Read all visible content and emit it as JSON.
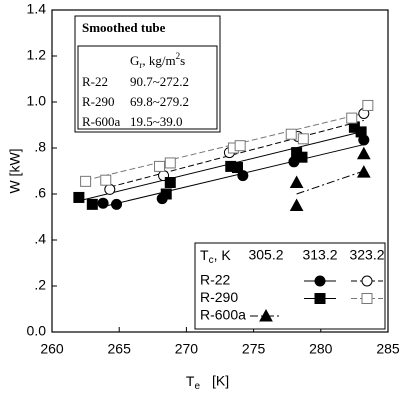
{
  "chart_data": {
    "type": "scatter",
    "x_label": "T",
    "x_label_sub": "e",
    "x_label_unit": "[K]",
    "y_label": "W  [kW]",
    "xlim": [
      260,
      285
    ],
    "xticks": [
      260,
      265,
      270,
      275,
      280,
      285
    ],
    "ylim": [
      0,
      1.4
    ],
    "yticks": [
      {
        "value": 0,
        "label": "0.0"
      },
      {
        "value": 0.2,
        "label": ".2"
      },
      {
        "value": 0.4,
        "label": ".4"
      },
      {
        "value": 0.6,
        "label": ".6"
      },
      {
        "value": 0.8,
        "label": ".8"
      },
      {
        "value": 1.0,
        "label": "1.0"
      },
      {
        "value": 1.2,
        "label": "1.2"
      },
      {
        "value": 1.4,
        "label": "1.4"
      }
    ],
    "inset": {
      "title": "Smoothed tube",
      "header": [
        "G",
        "r",
        ", kg/m",
        "2",
        "s"
      ],
      "rows": [
        [
          "R-22",
          "90.7~272.2"
        ],
        [
          "R-290",
          "69.8~279.2"
        ],
        [
          "R-600a",
          "19.5~39.0"
        ]
      ]
    },
    "legend": {
      "position": "lower right",
      "title": [
        "T",
        "c",
        ", K"
      ],
      "columns": [
        "305.2",
        "313.2",
        "323.2"
      ]
    },
    "series": [
      {
        "name": "R-22",
        "column": 1,
        "marker": "circle",
        "color": "#000",
        "line": "solid",
        "x": [
          263.8,
          264.8,
          268.2,
          274.2,
          278.0,
          283.2
        ],
        "values": [
          0.56,
          0.555,
          0.58,
          0.68,
          0.74,
          0.835
        ],
        "fit": {
          "x": [
            263.8,
            283.2
          ],
          "y": [
            0.545,
            0.815
          ]
        }
      },
      {
        "name": "R-22",
        "column": 2,
        "marker": "circle-open",
        "color": "#000",
        "line": "dash",
        "x": [
          264.3,
          268.3,
          273.2,
          278.3,
          283.2
        ],
        "values": [
          0.62,
          0.68,
          0.78,
          0.85,
          0.95
        ],
        "fit": {
          "x": [
            264.3,
            283.2
          ],
          "y": [
            0.63,
            0.92
          ]
        }
      },
      {
        "name": "R-290",
        "column": 1,
        "marker": "square",
        "color": "#000",
        "line": "solid",
        "x": [
          262.0,
          263.0,
          268.5,
          268.8,
          273.3,
          273.8,
          278.2,
          278.6,
          282.5,
          283.0
        ],
        "values": [
          0.585,
          0.555,
          0.6,
          0.65,
          0.72,
          0.715,
          0.78,
          0.76,
          0.89,
          0.87
        ],
        "fit": {
          "x": [
            262.0,
            283.0
          ],
          "y": [
            0.57,
            0.87
          ]
        }
      },
      {
        "name": "R-290",
        "column": 2,
        "marker": "square-open",
        "color": "#777",
        "line": "dash",
        "x": [
          262.5,
          264.0,
          268.0,
          268.8,
          273.5,
          274.0,
          277.8,
          278.7,
          282.3,
          283.5
        ],
        "values": [
          0.655,
          0.66,
          0.72,
          0.735,
          0.8,
          0.81,
          0.86,
          0.84,
          0.93,
          0.985
        ],
        "fit": {
          "x": [
            262.5,
            283.5
          ],
          "y": [
            0.66,
            0.955
          ]
        }
      },
      {
        "name": "R-600a",
        "column": 0,
        "marker": "triangle",
        "color": "#000",
        "line": "dashdot",
        "x": [
          278.2,
          278.2,
          283.2,
          283.2
        ],
        "values": [
          0.65,
          0.55,
          0.775,
          0.695
        ],
        "fit": {
          "x": [
            278.2,
            283.2
          ],
          "y": [
            0.6,
            0.7
          ]
        }
      }
    ]
  }
}
